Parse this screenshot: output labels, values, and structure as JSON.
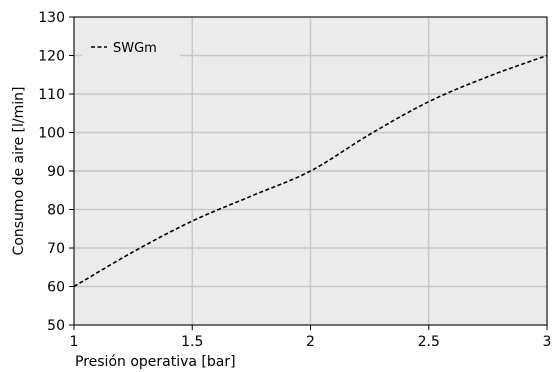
{
  "chart_data": {
    "type": "line",
    "title": "",
    "xlabel": "Presión operativa [bar]",
    "ylabel": "Consumo de aire [l/min]",
    "xlim": [
      1,
      3
    ],
    "ylim": [
      50,
      130
    ],
    "xticks": [
      1,
      1.5,
      2,
      2.5,
      3
    ],
    "xtick_labels": [
      "1",
      "1.5",
      "2",
      "2.5",
      "3"
    ],
    "yticks": [
      50,
      60,
      70,
      80,
      90,
      100,
      110,
      120,
      130
    ],
    "ytick_labels": [
      "50",
      "60",
      "70",
      "80",
      "90",
      "100",
      "110",
      "120",
      "130"
    ],
    "grid": true,
    "legend": "top-left",
    "series": [
      {
        "name": "SWGm",
        "line_style": "dashed",
        "color": "#000000",
        "x": [
          1.0,
          1.25,
          1.5,
          1.75,
          2.0,
          2.25,
          2.5,
          2.75,
          3.0
        ],
        "y": [
          60,
          69,
          77,
          83.5,
          90,
          99.5,
          108,
          114.5,
          120
        ]
      }
    ]
  },
  "colors": {
    "plot_background": "#ebebeb",
    "grid": "#c8c8c8",
    "axes": "#000000"
  }
}
